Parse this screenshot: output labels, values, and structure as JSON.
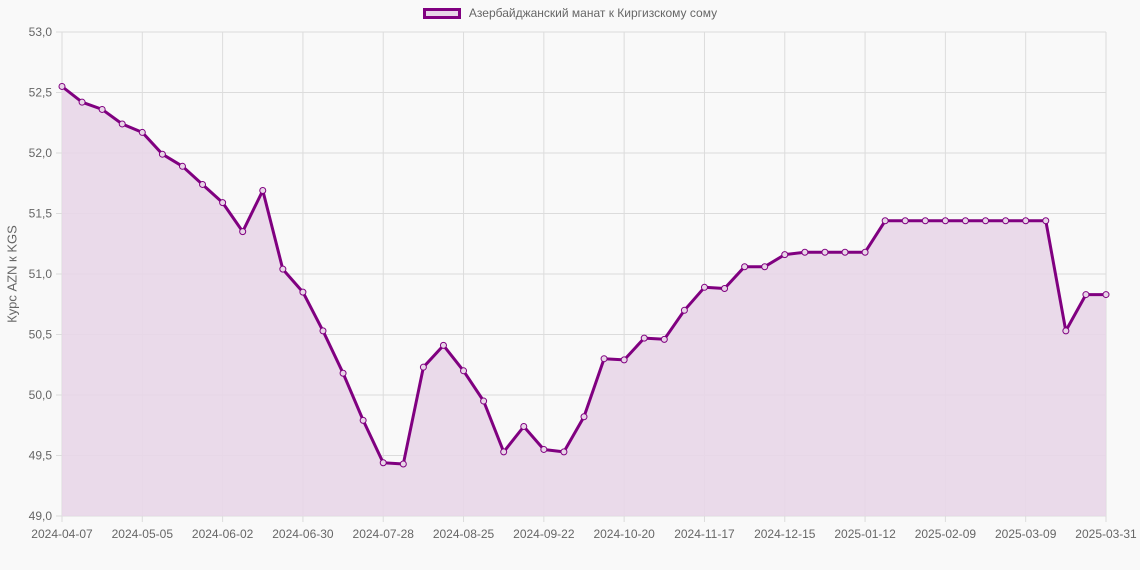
{
  "chart_data": {
    "type": "line",
    "title": "",
    "legend": [
      "Азербайджанский манат к Киргизскому сому"
    ],
    "legend_position": "top",
    "xlabel": "",
    "ylabel": "Курс AZN к KGS",
    "ylim": [
      49.0,
      53.0
    ],
    "yticks": [
      "53,0",
      "52,5",
      "52,0",
      "51,5",
      "51,0",
      "50,5",
      "50,0",
      "49,5",
      "49,0"
    ],
    "xticks": [
      "2024-04-07",
      "2024-05-05",
      "2024-06-02",
      "2024-06-30",
      "2024-07-28",
      "2024-08-25",
      "2024-09-22",
      "2024-10-20",
      "2024-11-17",
      "2024-12-15",
      "2025-01-12",
      "2025-02-09",
      "2025-03-09",
      "2025-03-31"
    ],
    "grid": true,
    "fill": true,
    "colors": {
      "line": "#800080",
      "fill": "#e8d6e8",
      "grid": "#dcdcdc",
      "background": "#f9f9f9"
    },
    "series": [
      {
        "name": "Азербайджанский манат к Киргизскому сому",
        "values": [
          52.55,
          52.42,
          52.36,
          52.24,
          52.17,
          51.99,
          51.89,
          51.74,
          51.59,
          51.35,
          51.69,
          51.04,
          50.85,
          50.53,
          50.18,
          49.79,
          49.44,
          49.43,
          50.23,
          50.41,
          50.2,
          49.95,
          49.53,
          49.74,
          49.55,
          49.53,
          49.82,
          50.3,
          50.29,
          50.47,
          50.46,
          50.7,
          50.89,
          50.88,
          51.06,
          51.06,
          51.16,
          51.18,
          51.18,
          51.18,
          51.18,
          51.44,
          51.44,
          51.44,
          51.44,
          51.44,
          51.44,
          51.44,
          51.44,
          51.44,
          50.53,
          50.83,
          50.83
        ]
      }
    ]
  }
}
